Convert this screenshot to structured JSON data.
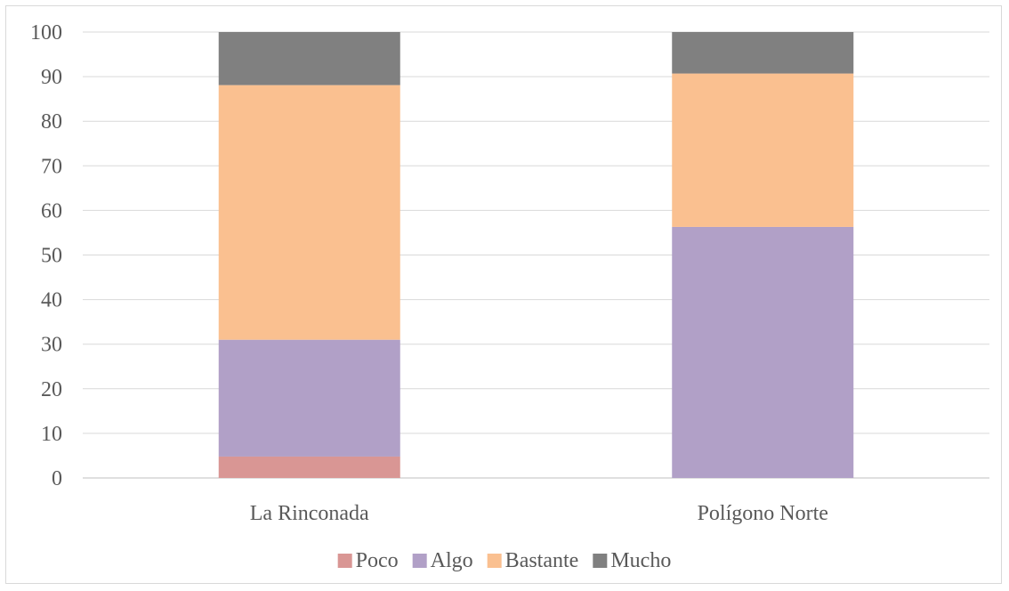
{
  "chart_data": {
    "type": "bar",
    "stacked": true,
    "categories": [
      "La Rinconada",
      "Polígono Norte"
    ],
    "series": [
      {
        "name": "Poco",
        "values": [
          4.8,
          0
        ],
        "color": "#d99694"
      },
      {
        "name": "Algo",
        "values": [
          26.2,
          56.3
        ],
        "color": "#b1a0c7"
      },
      {
        "name": "Bastante",
        "values": [
          57.1,
          34.4
        ],
        "color": "#fac090"
      },
      {
        "name": "Mucho",
        "values": [
          11.9,
          9.3
        ],
        "color": "#808080"
      }
    ],
    "ylim": [
      0,
      100
    ],
    "yticks": [
      0,
      10,
      20,
      30,
      40,
      50,
      60,
      70,
      80,
      90,
      100
    ],
    "grid": true,
    "legend_position": "bottom"
  }
}
